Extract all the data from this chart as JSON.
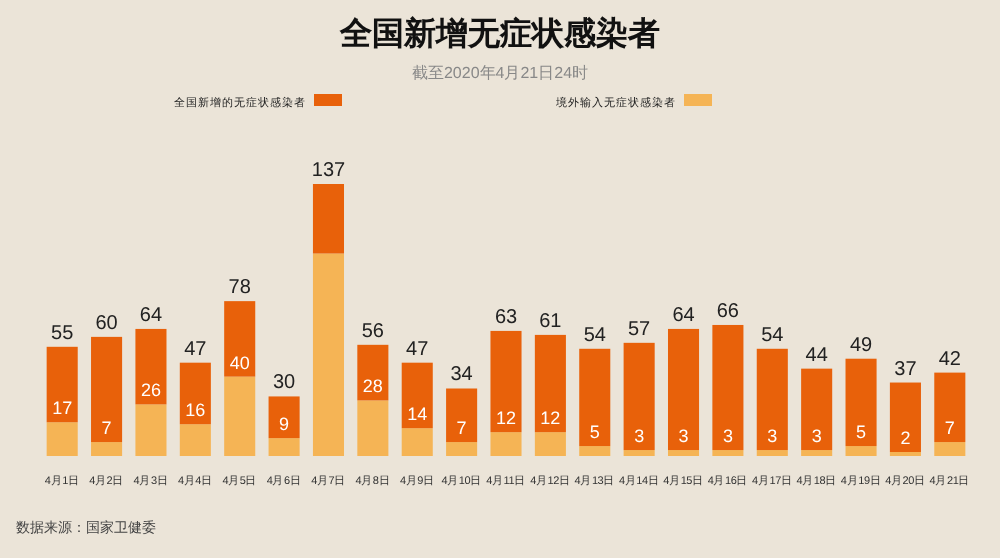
{
  "chart_data": {
    "type": "bar",
    "stacked": true,
    "title": "全国新增无症状感染者",
    "subtitle": "截至2020年4月21日24时",
    "legend": "top",
    "categories": [
      "4月1日",
      "4月2日",
      "4月3日",
      "4月4日",
      "4月5日",
      "4月6日",
      "4月7日",
      "4月8日",
      "4月9日",
      "4月10日",
      "4月11日",
      "4月12日",
      "4月13日",
      "4月14日",
      "4月15日",
      "4月16日",
      "4月17日",
      "4月18日",
      "4月19日",
      "4月20日",
      "4月21日"
    ],
    "series": [
      {
        "name": "境外输入无症状感染者",
        "color": "#f5b455",
        "values": [
          17,
          7,
          26,
          16,
          40,
          9,
          102,
          28,
          14,
          7,
          12,
          12,
          5,
          3,
          3,
          3,
          3,
          3,
          5,
          2,
          7
        ],
        "value_labels": [
          "17",
          "7",
          "26",
          "16",
          "40",
          "9",
          null,
          "28",
          "14",
          "7",
          "12",
          "12",
          "5",
          "3",
          "3",
          "3",
          "3",
          "3",
          "5",
          "2",
          "7"
        ]
      },
      {
        "name": "全国新增的无症状感染者",
        "color": "#e8610a",
        "values": [
          38,
          53,
          38,
          31,
          38,
          21,
          35,
          28,
          33,
          27,
          51,
          49,
          49,
          54,
          61,
          63,
          51,
          41,
          44,
          35,
          35
        ]
      }
    ],
    "totals": [
      "55",
      "60",
      "64",
      "47",
      "78",
      "30",
      "137",
      "56",
      "47",
      "34",
      "63",
      "61",
      "54",
      "57",
      "64",
      "66",
      "54",
      "44",
      "49",
      "37",
      "42"
    ],
    "annotations": [
      "数据来源：国家卫健委"
    ]
  }
}
